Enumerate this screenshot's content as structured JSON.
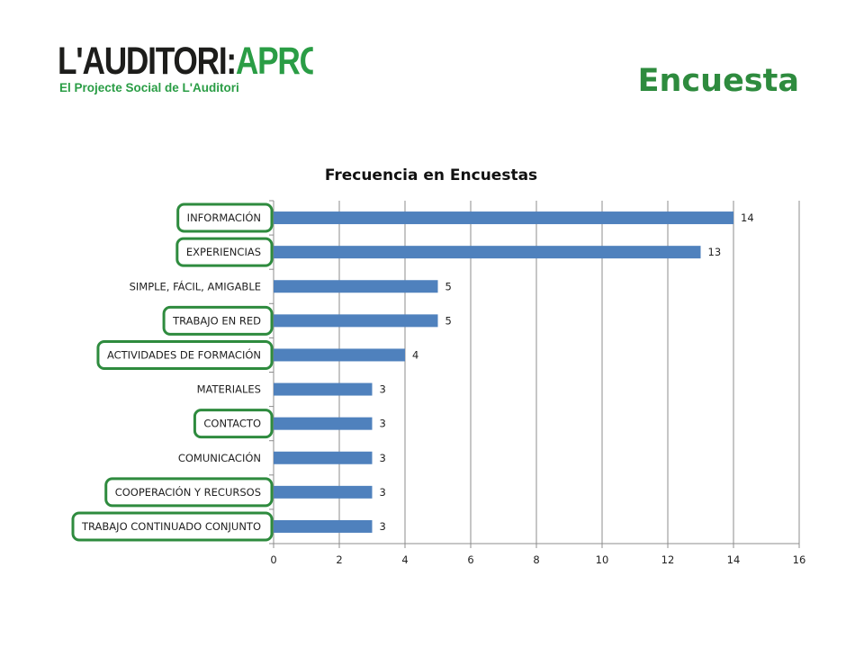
{
  "logo": {
    "main_part1": "L'AUDITORI:",
    "main_part2": "APROPA",
    "subtitle": "El Projecte Social de L'Auditori",
    "dark_color": "#1d1d1b",
    "green_color": "#2a9d45"
  },
  "page": {
    "title": "Encuesta",
    "title_color": "#2e8b3e"
  },
  "chart_data": {
    "type": "bar",
    "orientation": "horizontal",
    "title": "Frecuencia en Encuestas",
    "categories": [
      "INFORMACIÓN",
      "EXPERIENCIAS",
      "SIMPLE, FÁCIL, AMIGABLE",
      "TRABAJO EN RED",
      "ACTIVIDADES DE FORMACIÓN",
      "MATERIALES",
      "CONTACTO",
      "COMUNICACIÓN",
      "COOPERACIÓN Y RECURSOS",
      "TRABAJO CONTINUADO CONJUNTO"
    ],
    "values": [
      14,
      13,
      5,
      5,
      4,
      3,
      3,
      3,
      3,
      3
    ],
    "highlighted": [
      true,
      true,
      false,
      true,
      true,
      false,
      true,
      false,
      true,
      true
    ],
    "xlim": [
      0,
      16
    ],
    "xticks": [
      0,
      2,
      4,
      6,
      8,
      10,
      12,
      14,
      16
    ],
    "grid": true,
    "data_labels": true,
    "bar_color": "#4f81bd",
    "highlight_color": "#2e8b3e"
  }
}
